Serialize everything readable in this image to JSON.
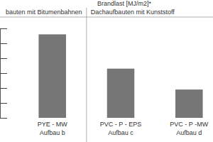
{
  "chart_data": {
    "type": "bar",
    "title": "Brandlast [MJ/m2]*",
    "annotations": [
      "bauten mit Bitumenbahnen",
      "Dachaufbauten mit Kunststoff"
    ],
    "categories": [
      "PYE - MW\nAufbau b",
      "PVC - P - EPS\nAufbau c",
      "PVC - P -MW\nAufbau d"
    ],
    "values": [
      5.6,
      3.3,
      1.9
    ],
    "color": "#767676",
    "ylim": [
      0,
      6
    ],
    "yticks": [
      0,
      1,
      2,
      3,
      4,
      5,
      6
    ],
    "grid": false,
    "tick_labels": false
  }
}
